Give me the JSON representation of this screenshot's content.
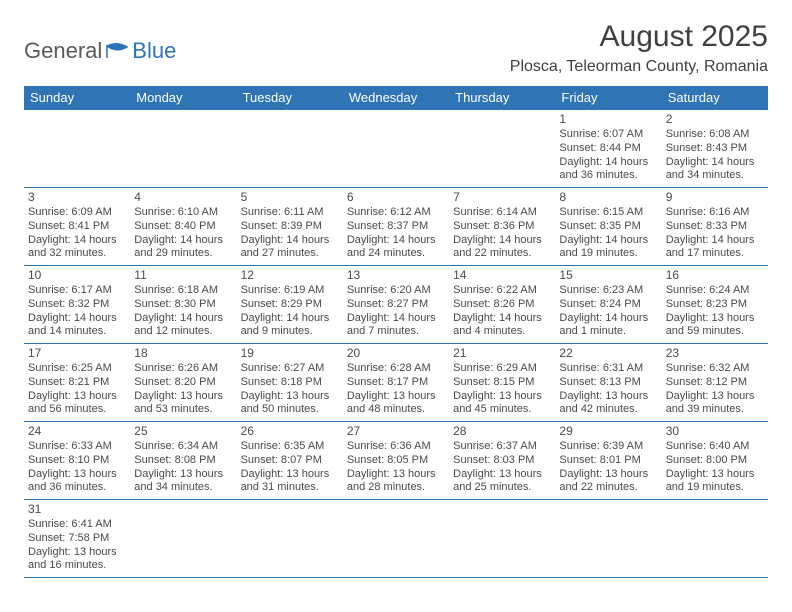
{
  "logo": {
    "part1": "General",
    "part2": "Blue"
  },
  "title": "August 2025",
  "location": "Plosca, Teleorman County, Romania",
  "colors": {
    "header_bg": "#2f74b5",
    "header_text": "#ffffff",
    "border": "#2f74b5",
    "text": "#4a4a4a"
  },
  "weekdays": [
    "Sunday",
    "Monday",
    "Tuesday",
    "Wednesday",
    "Thursday",
    "Friday",
    "Saturday"
  ],
  "weeks": [
    [
      null,
      null,
      null,
      null,
      null,
      {
        "n": "1",
        "sr": "Sunrise: 6:07 AM",
        "ss": "Sunset: 8:44 PM",
        "dl": "Daylight: 14 hours and 36 minutes."
      },
      {
        "n": "2",
        "sr": "Sunrise: 6:08 AM",
        "ss": "Sunset: 8:43 PM",
        "dl": "Daylight: 14 hours and 34 minutes."
      }
    ],
    [
      {
        "n": "3",
        "sr": "Sunrise: 6:09 AM",
        "ss": "Sunset: 8:41 PM",
        "dl": "Daylight: 14 hours and 32 minutes."
      },
      {
        "n": "4",
        "sr": "Sunrise: 6:10 AM",
        "ss": "Sunset: 8:40 PM",
        "dl": "Daylight: 14 hours and 29 minutes."
      },
      {
        "n": "5",
        "sr": "Sunrise: 6:11 AM",
        "ss": "Sunset: 8:39 PM",
        "dl": "Daylight: 14 hours and 27 minutes."
      },
      {
        "n": "6",
        "sr": "Sunrise: 6:12 AM",
        "ss": "Sunset: 8:37 PM",
        "dl": "Daylight: 14 hours and 24 minutes."
      },
      {
        "n": "7",
        "sr": "Sunrise: 6:14 AM",
        "ss": "Sunset: 8:36 PM",
        "dl": "Daylight: 14 hours and 22 minutes."
      },
      {
        "n": "8",
        "sr": "Sunrise: 6:15 AM",
        "ss": "Sunset: 8:35 PM",
        "dl": "Daylight: 14 hours and 19 minutes."
      },
      {
        "n": "9",
        "sr": "Sunrise: 6:16 AM",
        "ss": "Sunset: 8:33 PM",
        "dl": "Daylight: 14 hours and 17 minutes."
      }
    ],
    [
      {
        "n": "10",
        "sr": "Sunrise: 6:17 AM",
        "ss": "Sunset: 8:32 PM",
        "dl": "Daylight: 14 hours and 14 minutes."
      },
      {
        "n": "11",
        "sr": "Sunrise: 6:18 AM",
        "ss": "Sunset: 8:30 PM",
        "dl": "Daylight: 14 hours and 12 minutes."
      },
      {
        "n": "12",
        "sr": "Sunrise: 6:19 AM",
        "ss": "Sunset: 8:29 PM",
        "dl": "Daylight: 14 hours and 9 minutes."
      },
      {
        "n": "13",
        "sr": "Sunrise: 6:20 AM",
        "ss": "Sunset: 8:27 PM",
        "dl": "Daylight: 14 hours and 7 minutes."
      },
      {
        "n": "14",
        "sr": "Sunrise: 6:22 AM",
        "ss": "Sunset: 8:26 PM",
        "dl": "Daylight: 14 hours and 4 minutes."
      },
      {
        "n": "15",
        "sr": "Sunrise: 6:23 AM",
        "ss": "Sunset: 8:24 PM",
        "dl": "Daylight: 14 hours and 1 minute."
      },
      {
        "n": "16",
        "sr": "Sunrise: 6:24 AM",
        "ss": "Sunset: 8:23 PM",
        "dl": "Daylight: 13 hours and 59 minutes."
      }
    ],
    [
      {
        "n": "17",
        "sr": "Sunrise: 6:25 AM",
        "ss": "Sunset: 8:21 PM",
        "dl": "Daylight: 13 hours and 56 minutes."
      },
      {
        "n": "18",
        "sr": "Sunrise: 6:26 AM",
        "ss": "Sunset: 8:20 PM",
        "dl": "Daylight: 13 hours and 53 minutes."
      },
      {
        "n": "19",
        "sr": "Sunrise: 6:27 AM",
        "ss": "Sunset: 8:18 PM",
        "dl": "Daylight: 13 hours and 50 minutes."
      },
      {
        "n": "20",
        "sr": "Sunrise: 6:28 AM",
        "ss": "Sunset: 8:17 PM",
        "dl": "Daylight: 13 hours and 48 minutes."
      },
      {
        "n": "21",
        "sr": "Sunrise: 6:29 AM",
        "ss": "Sunset: 8:15 PM",
        "dl": "Daylight: 13 hours and 45 minutes."
      },
      {
        "n": "22",
        "sr": "Sunrise: 6:31 AM",
        "ss": "Sunset: 8:13 PM",
        "dl": "Daylight: 13 hours and 42 minutes."
      },
      {
        "n": "23",
        "sr": "Sunrise: 6:32 AM",
        "ss": "Sunset: 8:12 PM",
        "dl": "Daylight: 13 hours and 39 minutes."
      }
    ],
    [
      {
        "n": "24",
        "sr": "Sunrise: 6:33 AM",
        "ss": "Sunset: 8:10 PM",
        "dl": "Daylight: 13 hours and 36 minutes."
      },
      {
        "n": "25",
        "sr": "Sunrise: 6:34 AM",
        "ss": "Sunset: 8:08 PM",
        "dl": "Daylight: 13 hours and 34 minutes."
      },
      {
        "n": "26",
        "sr": "Sunrise: 6:35 AM",
        "ss": "Sunset: 8:07 PM",
        "dl": "Daylight: 13 hours and 31 minutes."
      },
      {
        "n": "27",
        "sr": "Sunrise: 6:36 AM",
        "ss": "Sunset: 8:05 PM",
        "dl": "Daylight: 13 hours and 28 minutes."
      },
      {
        "n": "28",
        "sr": "Sunrise: 6:37 AM",
        "ss": "Sunset: 8:03 PM",
        "dl": "Daylight: 13 hours and 25 minutes."
      },
      {
        "n": "29",
        "sr": "Sunrise: 6:39 AM",
        "ss": "Sunset: 8:01 PM",
        "dl": "Daylight: 13 hours and 22 minutes."
      },
      {
        "n": "30",
        "sr": "Sunrise: 6:40 AM",
        "ss": "Sunset: 8:00 PM",
        "dl": "Daylight: 13 hours and 19 minutes."
      }
    ],
    [
      {
        "n": "31",
        "sr": "Sunrise: 6:41 AM",
        "ss": "Sunset: 7:58 PM",
        "dl": "Daylight: 13 hours and 16 minutes."
      },
      null,
      null,
      null,
      null,
      null,
      null
    ]
  ]
}
